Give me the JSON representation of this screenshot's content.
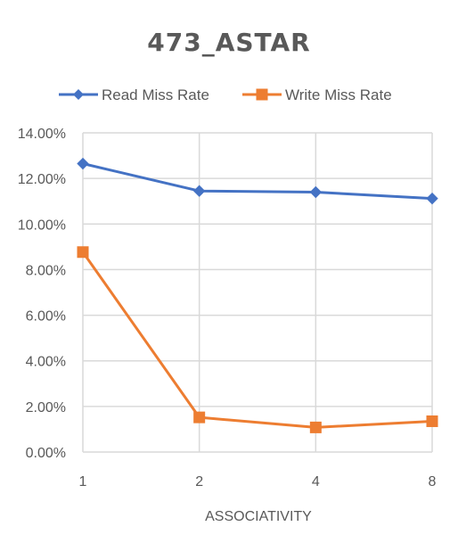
{
  "chart_data": {
    "type": "line",
    "title": "473_ASTAR",
    "xlabel": "ASSOCIATIVITY",
    "ylabel": "",
    "categories": [
      "1",
      "2",
      "4",
      "8"
    ],
    "y_ticks": [
      "0.00%",
      "2.00%",
      "4.00%",
      "6.00%",
      "8.00%",
      "10.00%",
      "12.00%",
      "14.00%"
    ],
    "ylim": [
      0,
      14
    ],
    "y_unit": "%",
    "grid": true,
    "legend_position": "top",
    "series": [
      {
        "name": "Read Miss Rate",
        "color": "#4472C4",
        "marker": "diamond",
        "values": [
          12.65,
          11.45,
          11.4,
          11.12
        ]
      },
      {
        "name": "Write Miss Rate",
        "color": "#ED7D31",
        "marker": "square",
        "values": [
          8.77,
          1.52,
          1.08,
          1.35
        ]
      }
    ]
  }
}
